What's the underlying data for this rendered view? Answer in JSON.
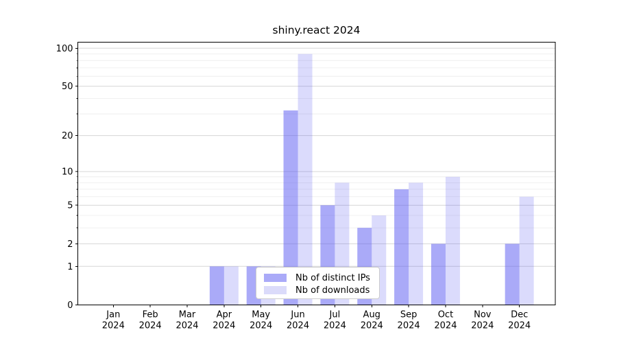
{
  "colors": {
    "bar_base": "#5555f1",
    "series_alpha": [
      0.5,
      0.21
    ],
    "series_solid": [
      "#aaaaf8",
      "#dbdbfa"
    ],
    "grid_major": "#d6d6d6",
    "grid_minor": "#ebebeb",
    "axis": "#000000",
    "text": "#000000",
    "legend_border": "#cccccc",
    "legend_background": "#ffffff"
  },
  "chart_data": {
    "type": "bar",
    "title": "shiny.react 2024",
    "xlabel": "",
    "ylabel": "",
    "categories": [
      "Jan 2024",
      "Feb 2024",
      "Mar 2024",
      "Apr 2024",
      "May 2024",
      "Jun 2024",
      "Jul 2024",
      "Aug 2024",
      "Sep 2024",
      "Oct 2024",
      "Nov 2024",
      "Dec 2024"
    ],
    "x": {
      "months": [
        "Jan",
        "Feb",
        "Mar",
        "Apr",
        "May",
        "Jun",
        "Jul",
        "Aug",
        "Sep",
        "Oct",
        "Nov",
        "Dec"
      ],
      "year": "2024"
    },
    "series": [
      {
        "name": "Nb of distinct IPs",
        "values": [
          0,
          0,
          0,
          1,
          1,
          32,
          5,
          3,
          7,
          2,
          0,
          2
        ]
      },
      {
        "name": "Nb of downloads",
        "values": [
          0,
          0,
          0,
          1,
          1,
          90,
          8,
          4,
          8,
          9,
          0,
          6
        ]
      }
    ],
    "yscale": "log1p",
    "ylim": [
      0,
      111
    ],
    "y_major_ticks": [
      0,
      1,
      2,
      5,
      10,
      20,
      50,
      100
    ],
    "y_tick_labels": [
      "0",
      "1",
      "2",
      "5",
      "10",
      "20",
      "50",
      "100"
    ],
    "y_minor_gridlines": [
      3,
      4,
      6,
      7,
      8,
      9,
      30,
      40,
      60,
      70,
      80,
      90
    ],
    "grid": true,
    "legend_position": "lower center"
  }
}
